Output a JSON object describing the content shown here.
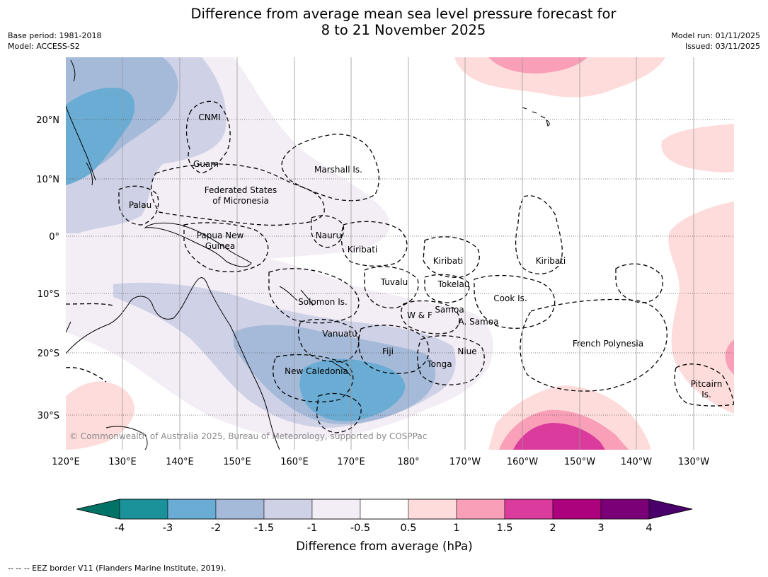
{
  "title": {
    "line1": "Difference from average mean sea level pressure forecast for",
    "line2": "8 to 21 November 2025"
  },
  "meta": {
    "base_period": "Base period: 1981-2018",
    "model": "Model: ACCESS-S2",
    "model_run": "Model run: 01/11/2025",
    "issued": "Issued: 03/11/2025"
  },
  "map": {
    "lon_ticks": [
      "120°E",
      "130°E",
      "140°E",
      "150°E",
      "160°E",
      "170°E",
      "180°",
      "170°W",
      "160°W",
      "150°W",
      "140°W",
      "130°W"
    ],
    "lat_ticks": [
      "20°N",
      "10°N",
      "0°",
      "10°S",
      "20°S",
      "30°S"
    ],
    "places": {
      "cnmi": "CNMI",
      "guam": "Guam",
      "marshall": "Marshall Is.",
      "fsm1": "Federated States",
      "fsm2": "of Micronesia",
      "palau": "Palau",
      "png1": "Papua New",
      "png2": "Guinea",
      "nauru": "Nauru",
      "kiribati_w": "Kiribati",
      "kiribati_c": "Kiribati",
      "kiribati_e": "Kiribati",
      "tuvalu": "Tuvalu",
      "tokelau": "Tokelau",
      "cook": "Cook Is.",
      "solomon": "Solomon Is.",
      "samoa": "Samoa",
      "wf": "W & F",
      "asamoa": "A. Samoa",
      "vanuatu": "Vanuatu",
      "fiji": "Fiji",
      "niue": "Niue",
      "fpoly": "French Polynesia",
      "newcal": "New Caledonia",
      "tonga": "Tonga",
      "pitcairn1": "Pitcairn",
      "pitcairn2": "Is."
    },
    "copyright": "© Commonwealth of Australia 2025, Bureau of Meteorology, supported by COSPPac"
  },
  "colorbar": {
    "ticks": [
      "-4",
      "-3",
      "-2",
      "-1.5",
      "-1",
      "-0.5",
      "0.5",
      "1",
      "1.5",
      "2",
      "3",
      "4"
    ],
    "colors": [
      "#007266",
      "#1b9199",
      "#6aacd3",
      "#a5bad9",
      "#cfd1e6",
      "#f3edf5",
      "#ffffff",
      "#fddcdb",
      "#f99fb8",
      "#da3b9c",
      "#ac027e",
      "#7b0077",
      "#4a006a"
    ],
    "label": "Difference from average (hPa)"
  },
  "footer": {
    "eez_legend": "--  --  -- EEZ border V11 (Flanders Marine Institute, 2019)."
  }
}
